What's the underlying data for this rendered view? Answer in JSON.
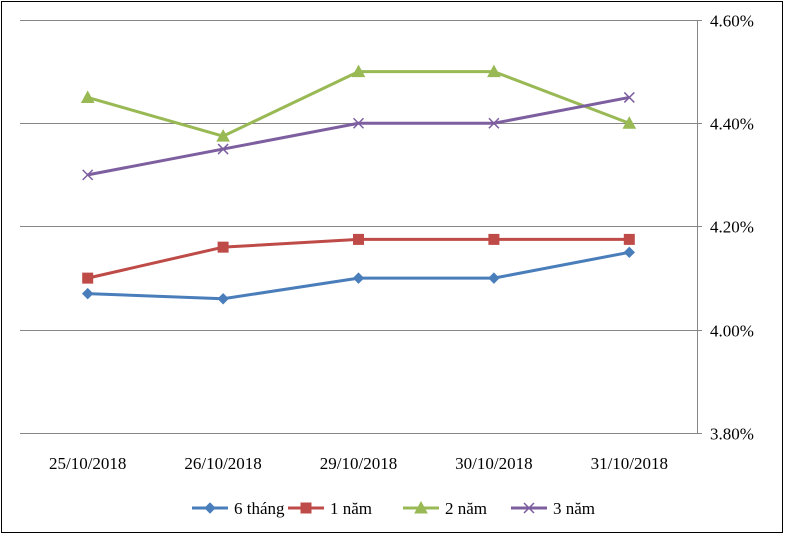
{
  "chart_data": {
    "type": "line",
    "title": "",
    "xlabel": "",
    "ylabel": "",
    "y_axis_side": "right",
    "ylim": [
      3.8,
      4.6
    ],
    "yticks": [
      3.8,
      4.0,
      4.2,
      4.4,
      4.6
    ],
    "ytick_labels": [
      "3.80%",
      "4.00%",
      "4.20%",
      "4.40%",
      "4.60%"
    ],
    "grid": true,
    "legend_position": "bottom",
    "categories": [
      "25/10/2018",
      "26/10/2018",
      "29/10/2018",
      "30/10/2018",
      "31/10/2018"
    ],
    "series": [
      {
        "name": "6 tháng",
        "color": "#4A7EBB",
        "marker": "diamond",
        "values": [
          4.07,
          4.06,
          4.1,
          4.1,
          4.15
        ]
      },
      {
        "name": "1 năm",
        "color": "#BE4B48",
        "marker": "square",
        "values": [
          4.1,
          4.16,
          4.175,
          4.175,
          4.175
        ]
      },
      {
        "name": "2 năm",
        "color": "#98B954",
        "marker": "triangle",
        "values": [
          4.45,
          4.375,
          4.5,
          4.5,
          4.4
        ]
      },
      {
        "name": "3 năm",
        "color": "#7D5FA0",
        "marker": "x",
        "values": [
          4.3,
          4.35,
          4.4,
          4.4,
          4.45
        ]
      }
    ]
  }
}
